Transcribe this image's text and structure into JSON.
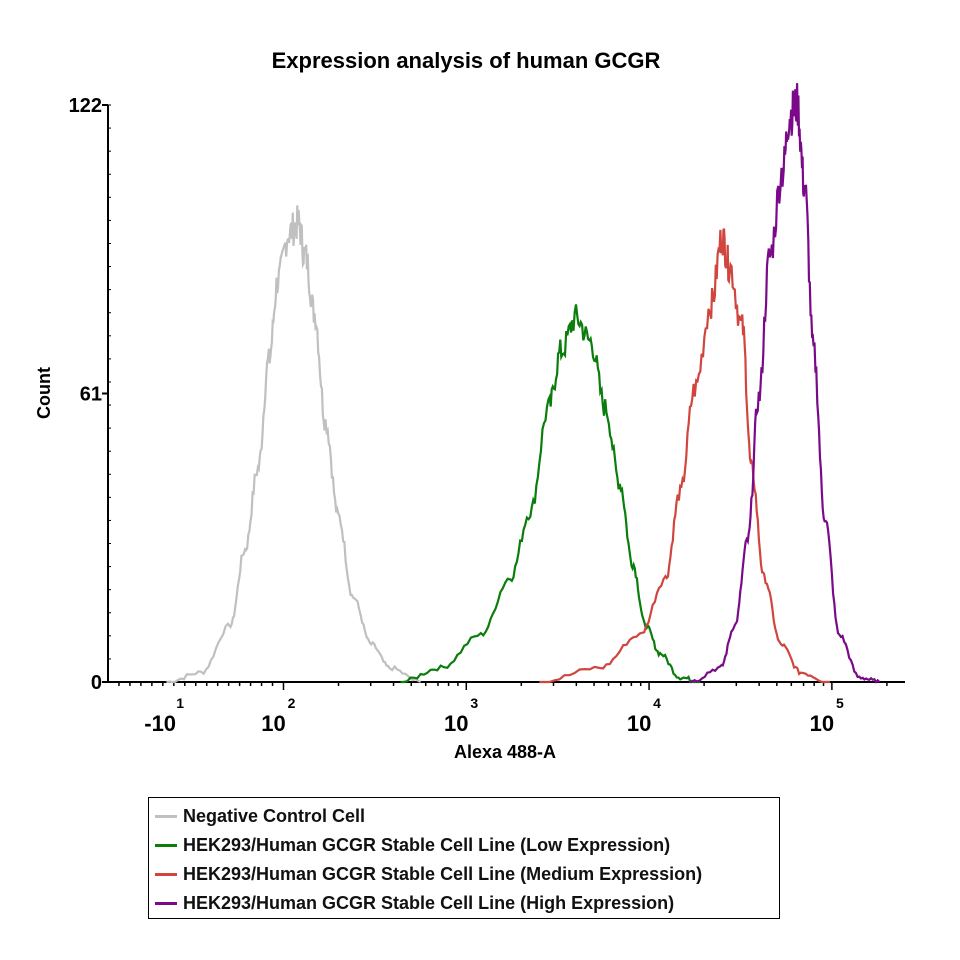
{
  "chart_data": {
    "type": "line",
    "title": "Expression analysis of human GCGR",
    "xlabel": "Alexa 488-A",
    "ylabel": "Count",
    "x_scale": "biexponential (values given as log10 intensity position)",
    "xlim": [
      1.04,
      5.4
    ],
    "ylim": [
      0,
      122
    ],
    "yticks": [
      {
        "value": 0,
        "label": "0"
      },
      {
        "value": 61,
        "label": "61"
      },
      {
        "value": 122,
        "label": "122"
      }
    ],
    "xticks": [
      {
        "value": 1.38,
        "base": "-10",
        "exp": "1"
      },
      {
        "value": 2,
        "base": "10",
        "exp": "2"
      },
      {
        "value": 3,
        "base": "10",
        "exp": "3"
      },
      {
        "value": 4,
        "base": "10",
        "exp": "4"
      },
      {
        "value": 5,
        "base": "10",
        "exp": "5"
      }
    ],
    "legend_position": "bottom",
    "series": [
      {
        "name": "Negative Control Cell",
        "color": "#c0c0c0",
        "x": [
          1.36,
          1.55,
          1.71,
          1.79,
          1.86,
          1.92,
          1.97,
          2.03,
          2.08,
          2.12,
          2.17,
          2.23,
          2.3,
          2.38,
          2.48,
          2.58,
          2.75
        ],
        "y": [
          0,
          2,
          12,
          28,
          45,
          68,
          85,
          95,
          97,
          90,
          78,
          55,
          35,
          18,
          8,
          3,
          0
        ]
      },
      {
        "name": "HEK293/Human GCGR Stable Cell Line (Low Expression)",
        "color": "#0a7d0a",
        "x": [
          2.64,
          2.86,
          3.08,
          3.24,
          3.35,
          3.45,
          3.52,
          3.6,
          3.68,
          3.76,
          3.84,
          3.91,
          3.98,
          4.06,
          4.17,
          4.28
        ],
        "y": [
          0,
          3,
          10,
          22,
          36,
          58,
          70,
          77,
          72,
          58,
          42,
          25,
          12,
          6,
          1,
          0
        ]
      },
      {
        "name": "HEK293/Human GCGR Stable Cell Line (Medium Expression)",
        "color": "#d0463f",
        "x": [
          3.4,
          3.73,
          3.95,
          4.09,
          4.17,
          4.25,
          4.34,
          4.4,
          4.44,
          4.51,
          4.56,
          4.63,
          4.72,
          4.83,
          4.99
        ],
        "y": [
          0,
          3,
          10,
          22,
          40,
          62,
          80,
          94,
          88,
          75,
          45,
          22,
          8,
          2,
          0
        ]
      },
      {
        "name": "HEK293/Human GCGR Stable Cell Line (High Expression)",
        "color": "#7b0a8a",
        "x": [
          4.22,
          4.39,
          4.47,
          4.54,
          4.6,
          4.66,
          4.73,
          4.77,
          4.81,
          4.85,
          4.9,
          4.96,
          5.04,
          5.15,
          5.26
        ],
        "y": [
          0,
          3,
          12,
          30,
          60,
          90,
          108,
          120,
          122,
          105,
          70,
          35,
          10,
          1,
          0
        ]
      }
    ]
  }
}
